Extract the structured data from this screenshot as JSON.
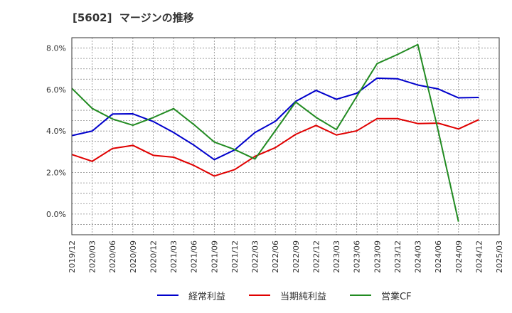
{
  "chart_data": {
    "type": "line",
    "title": "[5602]  マージンの推移",
    "xlabel": "",
    "ylabel": "",
    "categories": [
      "2019/12",
      "2020/03",
      "2020/06",
      "2020/09",
      "2020/12",
      "2021/03",
      "2021/06",
      "2021/09",
      "2021/12",
      "2022/03",
      "2022/06",
      "2022/09",
      "2022/12",
      "2023/03",
      "2023/06",
      "2023/09",
      "2023/12",
      "2024/03",
      "2024/06",
      "2024/09",
      "2024/12",
      "2025/03"
    ],
    "yticks": [
      "0.0%",
      "2.0%",
      "4.0%",
      "6.0%",
      "8.0%"
    ],
    "ylim": [
      -1.0,
      8.5
    ],
    "grid": true,
    "legend_position": "bottom",
    "series": [
      {
        "name": "経常利益",
        "color": "#0000cc",
        "values": [
          3.78,
          4.0,
          4.82,
          4.83,
          4.46,
          3.93,
          3.32,
          2.62,
          3.09,
          3.93,
          4.47,
          5.43,
          5.96,
          5.53,
          5.82,
          6.55,
          6.52,
          6.22,
          6.03,
          5.6,
          5.62,
          null
        ]
      },
      {
        "name": "当期純利益",
        "color": "#e00000",
        "values": [
          2.87,
          2.54,
          3.16,
          3.31,
          2.83,
          2.74,
          2.34,
          1.83,
          2.14,
          2.78,
          3.2,
          3.84,
          4.27,
          3.81,
          4.01,
          4.6,
          4.6,
          4.36,
          4.38,
          4.1,
          4.55,
          null
        ]
      },
      {
        "name": "営業CF",
        "color": "#228b22",
        "values": [
          6.06,
          5.09,
          4.58,
          4.28,
          4.65,
          5.08,
          4.31,
          3.47,
          3.11,
          2.65,
          4.02,
          5.4,
          4.66,
          4.07,
          5.67,
          7.25,
          7.69,
          8.17,
          4.03,
          -0.37,
          null,
          null
        ]
      }
    ]
  }
}
